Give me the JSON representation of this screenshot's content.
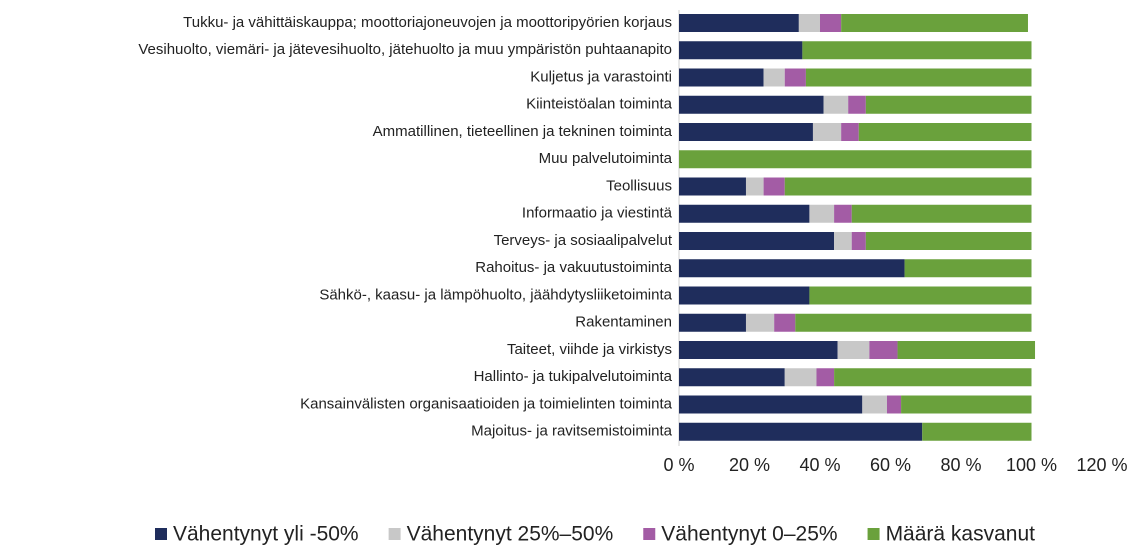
{
  "chart_data": {
    "type": "stacked-bar-horizontal",
    "categories": [
      "Tukku- ja vähittäiskauppa; moottoriajoneuvojen ja moottoripyörien korjaus",
      "Vesihuolto, viemäri- ja jätevesihuolto, jätehuolto ja muu ympäristön puhtaanapito",
      "Kuljetus ja varastointi",
      "Kiinteistöalan toiminta",
      "Ammatillinen, tieteellinen ja tekninen toiminta",
      "Muu palvelutoiminta",
      "Teollisuus",
      "Informaatio ja viestintä",
      "Terveys- ja sosiaalipalvelut",
      "Rahoitus- ja vakuutustoiminta",
      "Sähkö-, kaasu- ja lämpöhuolto, jäähdytysliiketoiminta",
      "Rakentaminen",
      "Taiteet, viihde ja virkistys",
      "Hallinto- ja tukipalvelutoiminta",
      "Kansainvälisten organisaatioiden ja toimielinten toiminta",
      "Majoitus- ja ravitsemistoiminta"
    ],
    "series": [
      {
        "name": "Vähentynyt yli -50%",
        "color": "#1f2d5c",
        "values": [
          34,
          35,
          24,
          41,
          38,
          0,
          19,
          37,
          44,
          64,
          37,
          19,
          45,
          30,
          52,
          69
        ]
      },
      {
        "name": "Vähentynyt 25%–50%",
        "color": "#c8c8c8",
        "values": [
          6,
          0,
          6,
          7,
          8,
          0,
          5,
          7,
          5,
          0,
          0,
          8,
          9,
          9,
          7,
          0
        ]
      },
      {
        "name": "Vähentynyt 0–25%",
        "color": "#a35ca5",
        "values": [
          6,
          0,
          6,
          5,
          5,
          0,
          6,
          5,
          4,
          0,
          0,
          6,
          8,
          5,
          4,
          0
        ]
      },
      {
        "name": "Määrä kasvanut",
        "color": "#6aa13c",
        "values": [
          53,
          65,
          64,
          47,
          49,
          100,
          70,
          51,
          47,
          36,
          63,
          67,
          39,
          56,
          37,
          31
        ]
      }
    ],
    "xlim": [
      0,
      120
    ],
    "xticks": [
      {
        "value": 0,
        "label": "0 %"
      },
      {
        "value": 20,
        "label": "20 %"
      },
      {
        "value": 40,
        "label": "40 %"
      },
      {
        "value": 60,
        "label": "60 %"
      },
      {
        "value": 80,
        "label": "80 %"
      },
      {
        "value": 100,
        "label": "100 %"
      },
      {
        "value": 120,
        "label": "120 %"
      }
    ],
    "grid": false,
    "legend": "bottom"
  }
}
